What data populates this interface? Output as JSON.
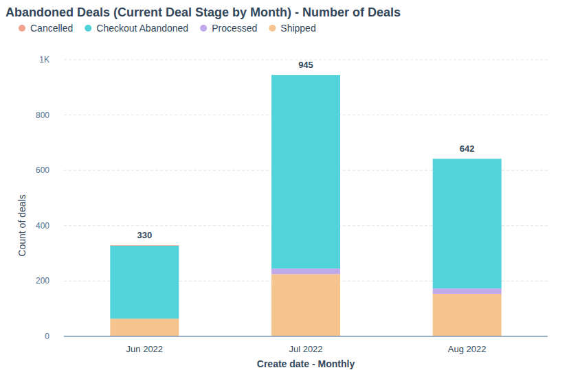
{
  "chart_data": {
    "type": "bar",
    "stacked": true,
    "title": "Abandoned Deals (Current Deal Stage by Month) - Number of Deals",
    "x_label": "Create date - Monthly",
    "y_label": "Count of deals",
    "categories": [
      "Jun 2022",
      "Jul 2022",
      "Aug 2022"
    ],
    "series": [
      {
        "name": "Cancelled",
        "color": "#f2a28e",
        "values": [
          2,
          0,
          0
        ]
      },
      {
        "name": "Checkout Abandoned",
        "color": "#51d3d9",
        "values": [
          264,
          700,
          469
        ]
      },
      {
        "name": "Processed",
        "color": "#bfa9ea",
        "values": [
          0,
          20,
          19
        ]
      },
      {
        "name": "Shipped",
        "color": "#f5c48f",
        "values": [
          64,
          225,
          154
        ]
      }
    ],
    "totals": [
      330,
      945,
      642
    ],
    "ylim": [
      0,
      1000
    ],
    "yticks": [
      0,
      200,
      400,
      600,
      800,
      {
        "value": 1000,
        "label": "1K"
      }
    ],
    "grid": true,
    "legend": "top"
  }
}
